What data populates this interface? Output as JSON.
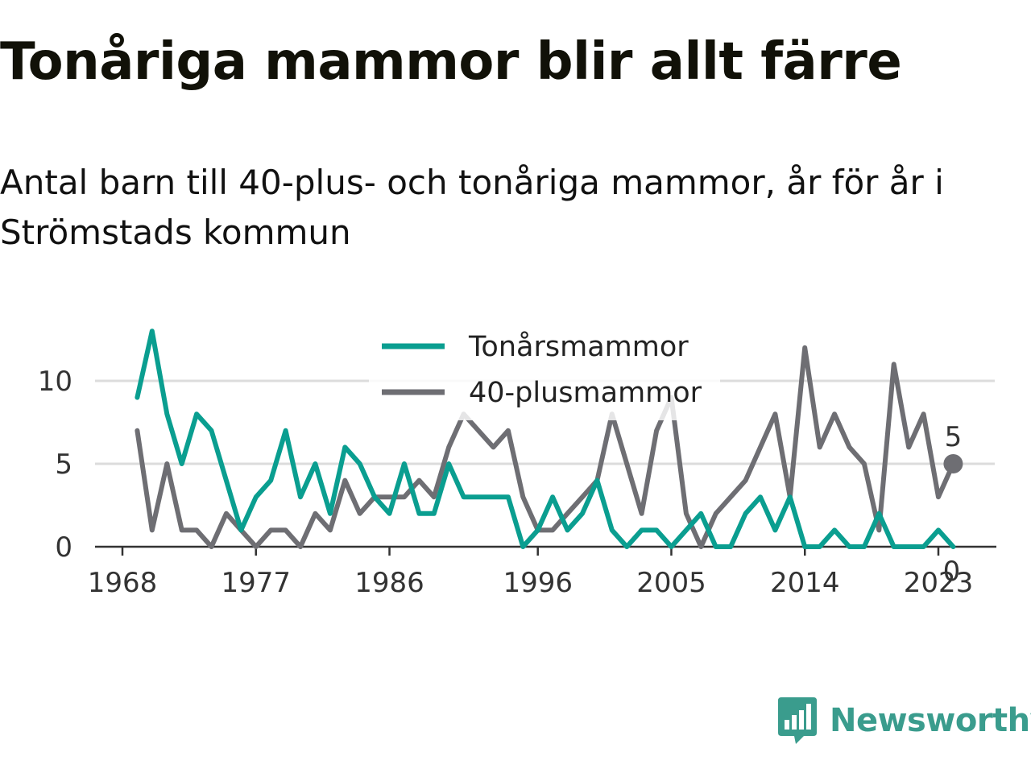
{
  "title": "Tonåriga mammor blir allt färre",
  "subtitle": "Antal barn till 40-plus- och tonåriga mammor, år för år i Strömstads kommun",
  "brand": "Newsworthy",
  "chart_data": {
    "type": "line",
    "x": [
      1969,
      1970,
      1971,
      1972,
      1973,
      1974,
      1975,
      1976,
      1977,
      1978,
      1979,
      1980,
      1981,
      1982,
      1983,
      1984,
      1985,
      1986,
      1987,
      1988,
      1989,
      1990,
      1991,
      1992,
      1993,
      1994,
      1995,
      1996,
      1997,
      1998,
      1999,
      2000,
      2001,
      2002,
      2003,
      2004,
      2005,
      2006,
      2007,
      2008,
      2009,
      2010,
      2011,
      2012,
      2013,
      2014,
      2015,
      2016,
      2017,
      2018,
      2019,
      2020,
      2021,
      2022,
      2023,
      2024
    ],
    "series": [
      {
        "name": "Tonårsmammor",
        "color": "#0a9e90",
        "values": [
          9,
          13,
          8,
          5,
          8,
          7,
          4,
          1,
          3,
          4,
          7,
          3,
          5,
          2,
          6,
          5,
          3,
          2,
          5,
          2,
          2,
          5,
          3,
          3,
          3,
          3,
          0,
          1,
          3,
          1,
          2,
          4,
          1,
          0,
          1,
          1,
          0,
          1,
          2,
          0,
          0,
          2,
          3,
          1,
          3,
          0,
          0,
          1,
          0,
          0,
          2,
          0,
          0,
          0,
          1,
          0
        ]
      },
      {
        "name": "40-plusmammor",
        "color": "#6e6e73",
        "values": [
          7,
          1,
          5,
          1,
          1,
          0,
          2,
          1,
          0,
          1,
          1,
          0,
          2,
          1,
          4,
          2,
          3,
          3,
          3,
          4,
          3,
          6,
          8,
          7,
          6,
          7,
          3,
          1,
          1,
          2,
          3,
          4,
          8,
          5,
          2,
          7,
          9,
          2,
          0,
          2,
          3,
          4,
          6,
          8,
          3,
          12,
          6,
          8,
          6,
          5,
          1,
          11,
          6,
          8,
          3,
          5
        ]
      }
    ],
    "xticks": [
      1968,
      1977,
      1986,
      1996,
      2005,
      2014,
      2023
    ],
    "yticks": [
      0,
      5,
      10
    ],
    "xlim": [
      1968,
      2025
    ],
    "ylim": [
      0,
      13
    ],
    "grid": "horizontal",
    "legend": "top-center",
    "end_labels": [
      {
        "series": "40-plusmammor",
        "value": 5,
        "text": "5"
      },
      {
        "series": "Tonårsmammor",
        "value": 0,
        "text": "0"
      }
    ]
  }
}
